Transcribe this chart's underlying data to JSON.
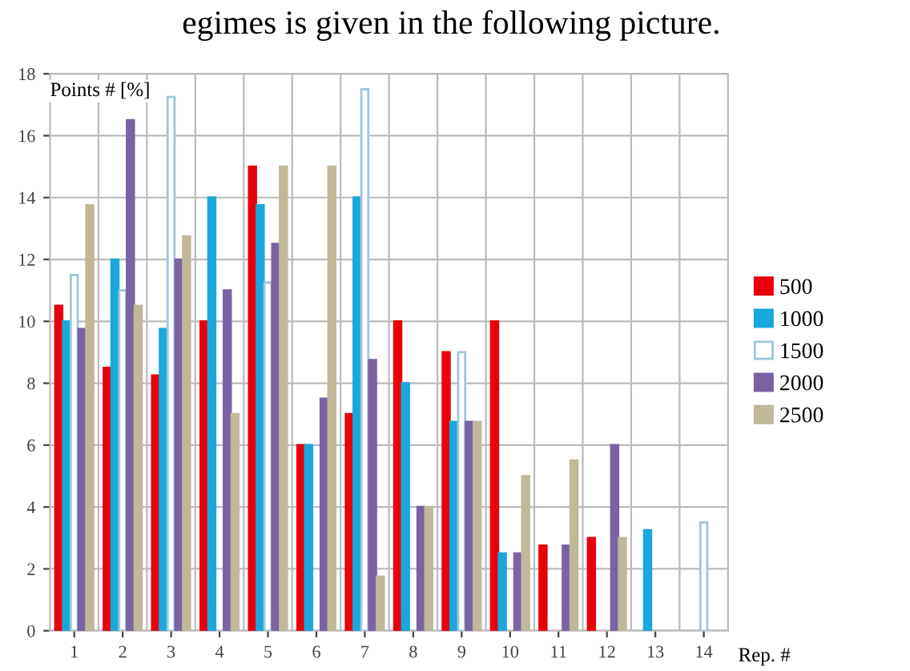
{
  "chart_data": {
    "type": "bar",
    "xlabel": "Rep. #",
    "ylabel": "Points # [%]",
    "annotations": [
      "egimes is given in the following picture."
    ],
    "categories": [
      "1",
      "2",
      "3",
      "4",
      "5",
      "6",
      "7",
      "8",
      "9",
      "10",
      "11",
      "12",
      "13",
      "14"
    ],
    "series": [
      {
        "name": "500",
        "color": "#e8000b",
        "values": [
          10.5,
          8.5,
          8.25,
          10,
          15,
          6,
          7,
          10,
          9,
          10,
          2.75,
          3,
          null,
          null
        ]
      },
      {
        "name": "1000",
        "color": "#1aa7dc",
        "values": [
          10,
          12,
          9.75,
          14,
          13.75,
          6,
          14,
          8,
          6.75,
          2.5,
          null,
          null,
          3.25,
          null
        ]
      },
      {
        "name": "1500",
        "color": "#ffffff",
        "values": [
          11.5,
          11,
          17.25,
          null,
          11.25,
          null,
          17.5,
          null,
          9,
          null,
          null,
          null,
          null,
          3.5
        ]
      },
      {
        "name": "2000",
        "color": "#7b62a3",
        "values": [
          9.75,
          16.5,
          12,
          11,
          12.5,
          7.5,
          8.75,
          4,
          6.75,
          2.5,
          2.75,
          6,
          null,
          null
        ]
      },
      {
        "name": "2500",
        "color": "#c0b899",
        "values": [
          13.75,
          10.5,
          12.75,
          7,
          15,
          15,
          1.75,
          4,
          6.75,
          5,
          5.5,
          3,
          null,
          null
        ]
      }
    ],
    "ylim": [
      0,
      18
    ],
    "yticks": [
      0,
      2,
      4,
      6,
      8,
      10,
      12,
      14,
      16,
      18
    ],
    "grid": true,
    "legend": "right"
  }
}
